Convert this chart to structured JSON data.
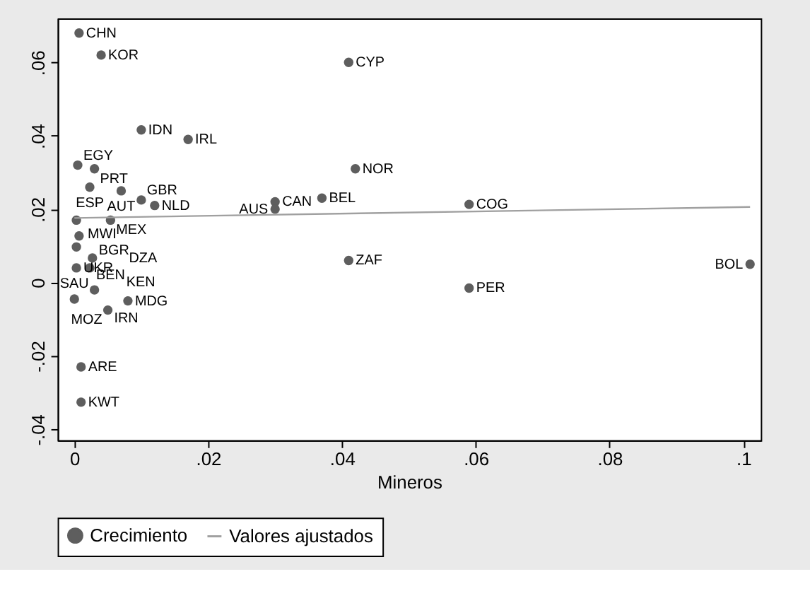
{
  "chart_data": {
    "type": "scatter",
    "xlabel": "Mineros",
    "xlim": [
      -0.0025,
      0.1026
    ],
    "ylim": [
      -0.043,
      0.072
    ],
    "xticks": [
      {
        "value": 0,
        "label": "0"
      },
      {
        "value": 0.02,
        "label": ".02"
      },
      {
        "value": 0.04,
        "label": ".04"
      },
      {
        "value": 0.06,
        "label": ".06"
      },
      {
        "value": 0.08,
        "label": ".08"
      },
      {
        "value": 0.1,
        "label": ".1"
      }
    ],
    "yticks": [
      {
        "value": -0.04,
        "label": "-.04"
      },
      {
        "value": -0.02,
        "label": "-.02"
      },
      {
        "value": 0,
        "label": "0"
      },
      {
        "value": 0.02,
        "label": ".02"
      },
      {
        "value": 0.04,
        "label": ".04"
      },
      {
        "value": 0.06,
        "label": ".06"
      }
    ],
    "grid": false,
    "legend": "bottom",
    "series": [
      {
        "name": "Crecimiento",
        "type": "scatter",
        "marker": "circle",
        "color": "#5e5e5e",
        "x": [
          0.0007,
          0.004,
          0.041,
          0.01,
          0.017,
          0.042,
          0.0005,
          0.003,
          0.03,
          0.03,
          0.037,
          0.059,
          0.041,
          0.059,
          0.101,
          0.0023,
          0.007,
          0.01,
          0.012,
          0.0003,
          0.0054,
          0.0007,
          0.0003,
          0.0027,
          0.0023,
          0.0003,
          0.0,
          0.003,
          0.008,
          0.005,
          0.001,
          0.001
        ],
        "values": [
          0.068,
          0.062,
          0.06,
          0.0416,
          0.039,
          0.031,
          0.032,
          0.031,
          0.022,
          0.02,
          0.023,
          0.0213,
          0.006,
          -0.0015,
          0.005,
          0.026,
          0.025,
          0.0225,
          0.021,
          0.017,
          0.017,
          0.0127,
          0.0097,
          0.0067,
          0.004,
          0.004,
          -0.0045,
          -0.002,
          -0.005,
          -0.0075,
          -0.023,
          -0.0326
        ]
      },
      {
        "name": "Valores ajustados",
        "type": "line",
        "color": "#a0a0a0",
        "x": [
          0,
          0.101
        ],
        "values": [
          0.0176,
          0.0206
        ]
      }
    ],
    "annotations": [
      {
        "text": "CHN",
        "x": 0.0007,
        "y": 0.068
      },
      {
        "text": "KOR",
        "x": 0.004,
        "y": 0.062
      },
      {
        "text": "CYP",
        "x": 0.041,
        "y": 0.06
      },
      {
        "text": "IDN",
        "x": 0.01,
        "y": 0.0416
      },
      {
        "text": "IRL",
        "x": 0.017,
        "y": 0.039
      },
      {
        "text": "NOR",
        "x": 0.042,
        "y": 0.031
      },
      {
        "text": "EGY",
        "x": 0.0005,
        "y": 0.032
      },
      {
        "text": "PRT",
        "x": 0.003,
        "y": 0.031
      },
      {
        "text": "CAN",
        "x": 0.03,
        "y": 0.022
      },
      {
        "text": "AUS",
        "x": 0.03,
        "y": 0.02
      },
      {
        "text": "BEL",
        "x": 0.037,
        "y": 0.023
      },
      {
        "text": "COG",
        "x": 0.059,
        "y": 0.0213
      },
      {
        "text": "ZAF",
        "x": 0.041,
        "y": 0.006
      },
      {
        "text": "PER",
        "x": 0.059,
        "y": -0.0015
      },
      {
        "text": "BOL",
        "x": 0.101,
        "y": 0.005
      },
      {
        "text": "ESP",
        "x": 0.0023,
        "y": 0.026
      },
      {
        "text": "AUT",
        "x": 0.007,
        "y": 0.025
      },
      {
        "text": "GBR",
        "x": 0.01,
        "y": 0.0225
      },
      {
        "text": "NLD",
        "x": 0.012,
        "y": 0.021
      },
      {
        "text": "MWI",
        "x": 0.0003,
        "y": 0.017
      },
      {
        "text": "MEX",
        "x": 0.0054,
        "y": 0.017
      },
      {
        "text": "BGR",
        "x": 0.0007,
        "y": 0.0127
      },
      {
        "text": "BEN",
        "x": 0.0003,
        "y": 0.0097
      },
      {
        "text": "DZA",
        "x": 0.0027,
        "y": 0.0067
      },
      {
        "text": "KEN",
        "x": 0.0023,
        "y": 0.004
      },
      {
        "text": "UKR",
        "x": 0.0003,
        "y": 0.004
      },
      {
        "text": "SAU",
        "x": 0.0,
        "y": -0.0045
      },
      {
        "text": "IRN",
        "x": 0.003,
        "y": -0.002
      },
      {
        "text": "MDG",
        "x": 0.008,
        "y": -0.005
      },
      {
        "text": "MOZ",
        "x": 0.005,
        "y": -0.0075
      },
      {
        "text": "ARE",
        "x": 0.001,
        "y": -0.023
      },
      {
        "text": "KWT",
        "x": 0.001,
        "y": -0.0326
      }
    ]
  }
}
